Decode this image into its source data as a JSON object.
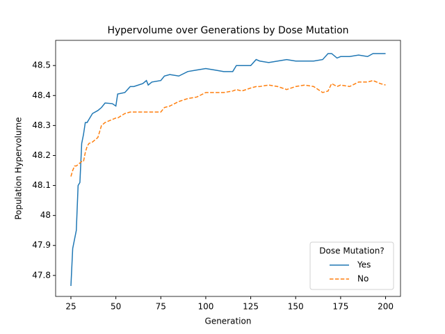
{
  "chart_data": {
    "type": "line",
    "title": "Hypervolume over Generations by Dose Mutation",
    "x_label": "Generation",
    "y_label": "Population Hypervolume",
    "legend_title": "Dose Mutation?",
    "legend_position": "lower right",
    "x": [
      25,
      26,
      27,
      28,
      29,
      30,
      31,
      32,
      33,
      34,
      35,
      37,
      40,
      42,
      44,
      48,
      50,
      51,
      55,
      58,
      60,
      65,
      67,
      68,
      70,
      75,
      77,
      80,
      85,
      90,
      95,
      100,
      105,
      110,
      115,
      117,
      120,
      125,
      128,
      130,
      135,
      140,
      145,
      150,
      155,
      160,
      165,
      168,
      170,
      173,
      175,
      180,
      185,
      190,
      193,
      197,
      200
    ],
    "series": [
      {
        "name": "Yes",
        "color": "#1f77b4",
        "linestyle": "solid",
        "values": [
          47.765,
          47.89,
          47.92,
          47.95,
          48.1,
          48.11,
          48.24,
          48.27,
          48.31,
          48.31,
          48.32,
          48.34,
          48.35,
          48.36,
          48.375,
          48.373,
          48.365,
          48.405,
          48.41,
          48.43,
          48.43,
          48.44,
          48.45,
          48.435,
          48.445,
          48.45,
          48.465,
          48.47,
          48.465,
          48.48,
          48.485,
          48.49,
          48.485,
          48.48,
          48.48,
          48.5,
          48.5,
          48.5,
          48.52,
          48.515,
          48.51,
          48.515,
          48.52,
          48.515,
          48.515,
          48.515,
          48.52,
          48.54,
          48.54,
          48.525,
          48.53,
          48.53,
          48.535,
          48.53,
          48.54,
          48.54,
          48.54
        ]
      },
      {
        "name": "No",
        "color": "#ff7f0e",
        "linestyle": "dashed",
        "values": [
          48.13,
          48.15,
          48.165,
          48.165,
          48.17,
          48.175,
          48.18,
          48.18,
          48.21,
          48.23,
          48.24,
          48.245,
          48.26,
          48.3,
          48.31,
          48.32,
          48.325,
          48.325,
          48.34,
          48.345,
          48.345,
          48.345,
          48.345,
          48.345,
          48.345,
          48.345,
          48.36,
          48.365,
          48.38,
          48.39,
          48.395,
          48.41,
          48.41,
          48.41,
          48.415,
          48.42,
          48.415,
          48.425,
          48.43,
          48.43,
          48.435,
          48.43,
          48.42,
          48.43,
          48.435,
          48.43,
          48.41,
          48.415,
          48.44,
          48.43,
          48.435,
          48.43,
          48.445,
          48.445,
          48.45,
          48.44,
          48.435
        ]
      }
    ],
    "xlim": [
      16.5,
      208.3
    ],
    "xticks": [
      25,
      50,
      75,
      100,
      125,
      150,
      175,
      200
    ],
    "ylim": [
      47.73,
      48.584
    ],
    "yticks": [
      47.8,
      47.9,
      48.0,
      48.1,
      48.2,
      48.3,
      48.4,
      48.5
    ],
    "grid": false
  }
}
